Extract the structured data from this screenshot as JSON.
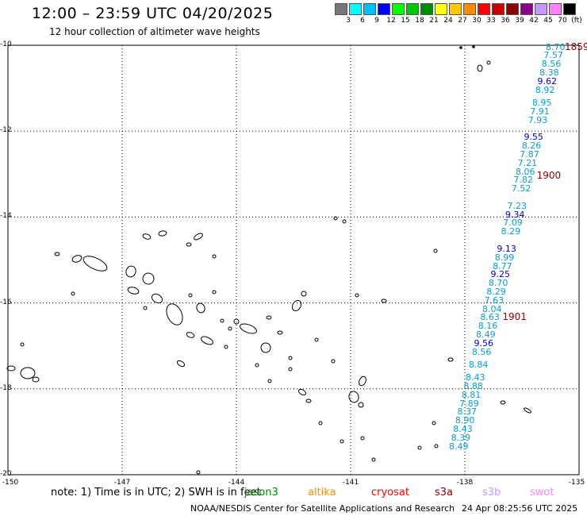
{
  "title": "12:00 – 23:59 UTC 04/20/2025",
  "subtitle": "12 hour collection of altimeter wave heights",
  "colorbar": {
    "unit": "(ft)",
    "colors": [
      "#777777",
      "#00ffff",
      "#00bfff",
      "#0000ff",
      "#00ff00",
      "#00c800",
      "#008c00",
      "#ffff00",
      "#ffc800",
      "#ff8c00",
      "#ff0000",
      "#c80000",
      "#8b0000",
      "#8b008b",
      "#c896ff",
      "#ff82ff",
      "#000000"
    ],
    "labels": [
      "3",
      "6",
      "9",
      "12",
      "15",
      "18",
      "21",
      "24",
      "27",
      "30",
      "33",
      "36",
      "39",
      "42",
      "45",
      "70"
    ]
  },
  "map": {
    "lat_labels": [
      "-10",
      "-12",
      "-14",
      "-16",
      "-18",
      "-20"
    ],
    "lon_labels": [
      "-150",
      "-147",
      "-144",
      "-141",
      "-138",
      "-135"
    ],
    "lat_range": [
      -20,
      -10
    ],
    "lon_range": [
      -150,
      -135
    ],
    "grid": "dotted"
  },
  "swh_track": [
    {
      "lat": -10.03,
      "value": "8.70"
    },
    {
      "lat": -10.23,
      "value": "7.57"
    },
    {
      "lat": -10.43,
      "value": "8.56"
    },
    {
      "lat": -10.63,
      "value": "8.38"
    },
    {
      "lat": -10.83,
      "value": "9.62"
    },
    {
      "lat": -11.03,
      "value": "8.92"
    },
    {
      "lat": -11.33,
      "value": "8.95"
    },
    {
      "lat": -11.53,
      "value": "7.91"
    },
    {
      "lat": -11.73,
      "value": "7.93"
    },
    {
      "lat": -12.13,
      "value": "9.55"
    },
    {
      "lat": -12.33,
      "value": "8.26"
    },
    {
      "lat": -12.53,
      "value": "7.87"
    },
    {
      "lat": -12.73,
      "value": "7.21"
    },
    {
      "lat": -12.93,
      "value": "8.06"
    },
    {
      "lat": -13.13,
      "value": "7.82"
    },
    {
      "lat": -13.33,
      "value": "7.52"
    },
    {
      "lat": -13.73,
      "value": "7.23"
    },
    {
      "lat": -13.93,
      "value": "9.34"
    },
    {
      "lat": -14.13,
      "value": "7.09"
    },
    {
      "lat": -14.33,
      "value": "8.29"
    },
    {
      "lat": -14.73,
      "value": "9.13"
    },
    {
      "lat": -14.93,
      "value": "8.99"
    },
    {
      "lat": -15.13,
      "value": "8.77"
    },
    {
      "lat": -15.33,
      "value": "9.25"
    },
    {
      "lat": -15.53,
      "value": "8.70"
    },
    {
      "lat": -15.73,
      "value": "8.29"
    },
    {
      "lat": -15.93,
      "value": "7.63"
    },
    {
      "lat": -16.13,
      "value": "8.04"
    },
    {
      "lat": -16.33,
      "value": "8.63"
    },
    {
      "lat": -16.53,
      "value": "8.16"
    },
    {
      "lat": -16.73,
      "value": "8.49"
    },
    {
      "lat": -16.93,
      "value": "9.56"
    },
    {
      "lat": -17.13,
      "value": "8.56"
    },
    {
      "lat": -17.43,
      "value": "8.84"
    },
    {
      "lat": -17.73,
      "value": "8.43"
    },
    {
      "lat": -17.93,
      "value": "8.88"
    },
    {
      "lat": -18.13,
      "value": "8.81"
    },
    {
      "lat": -18.33,
      "value": "7.89"
    },
    {
      "lat": -18.53,
      "value": "8.37"
    },
    {
      "lat": -18.73,
      "value": "8.90"
    },
    {
      "lat": -18.93,
      "value": "8.43"
    },
    {
      "lat": -19.13,
      "value": "8.39"
    },
    {
      "lat": -19.33,
      "value": "8.49"
    }
  ],
  "hour_labels": [
    {
      "lat": -10.03,
      "text": "1859"
    },
    {
      "lat": -13.03,
      "text": "1900"
    },
    {
      "lat": -16.33,
      "text": "1901"
    }
  ],
  "note": "note: 1) Time is in UTC; 2) SWH is in feet",
  "legend": [
    {
      "label": "jason3",
      "color": "#008c00"
    },
    {
      "label": "altika",
      "color": "#ff8c00"
    },
    {
      "label": "cryosat",
      "color": "#ff0000"
    },
    {
      "label": "s3a",
      "color": "#8b0000"
    },
    {
      "label": "s3b",
      "color": "#c896ff"
    },
    {
      "label": "swot",
      "color": "#ff82ff"
    }
  ],
  "footer": {
    "left": "NOAA/NESDIS Center for Satellite Applications and Research",
    "right": "24 Apr 08:25:56 UTC 2025"
  }
}
